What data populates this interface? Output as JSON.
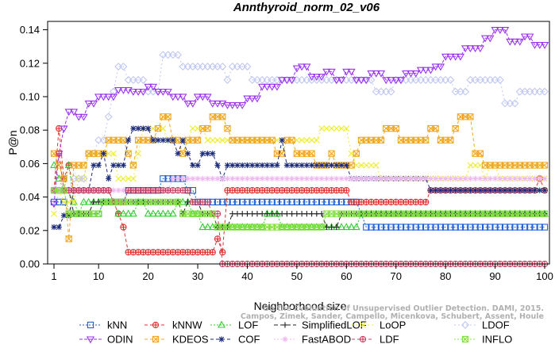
{
  "chart_data": {
    "type": "line",
    "title": "Annthyroid_norm_02_v06",
    "xlabel": "Neighborhood size",
    "ylabel": "P@n",
    "xlim": [
      1,
      100
    ],
    "ylim": [
      0,
      0.145
    ],
    "x_ticks": [
      1,
      10,
      20,
      30,
      40,
      50,
      60,
      70,
      80,
      90,
      100
    ],
    "y_ticks": [
      0.0,
      0.02,
      0.04,
      0.06,
      0.08,
      0.1,
      0.12,
      0.14
    ],
    "y_tick_labels": [
      "0.00",
      "0.02",
      "0.04",
      "0.06",
      "0.08",
      "0.10",
      "0.12",
      "0.14"
    ],
    "grid": false,
    "legend_position": "bottom",
    "watermark": [
      "Campos, Zimek, Sander, Campello, Micenkova, Schubert, Assent, Houle",
      "On the Evaluation of Unsupervised Outlier Detection. DAMI, 2015."
    ],
    "series": [
      {
        "name": "kNN",
        "color": "#1f5fd6",
        "marker": "square",
        "dash": "2,2",
        "points": [
          [
            1,
            0.037
          ],
          [
            3,
            0.037
          ],
          [
            4,
            0.03
          ],
          [
            10,
            0.03
          ],
          [
            11,
            0.037
          ],
          [
            16,
            0.044
          ],
          [
            22,
            0.044
          ],
          [
            23,
            0.051
          ],
          [
            27,
            0.051
          ],
          [
            28,
            0.044
          ],
          [
            30,
            0.037
          ],
          [
            62,
            0.037
          ],
          [
            63,
            0.03
          ],
          [
            64,
            0.022
          ],
          [
            100,
            0.022
          ]
        ]
      },
      {
        "name": "kNNW",
        "color": "#e03030",
        "marker": "circle-plus",
        "dash": "4,3",
        "points": [
          [
            1,
            0.044
          ],
          [
            2,
            0.081
          ],
          [
            3,
            0.051
          ],
          [
            4,
            0.059
          ],
          [
            5,
            0.044
          ],
          [
            12,
            0.044
          ],
          [
            13,
            0.037
          ],
          [
            14,
            0.03
          ],
          [
            15,
            0.022
          ],
          [
            16,
            0.007
          ],
          [
            33,
            0.007
          ],
          [
            34,
            0.015
          ],
          [
            35,
            0.007
          ],
          [
            36,
            0.044
          ],
          [
            60,
            0.044
          ],
          [
            61,
            0.037
          ],
          [
            76,
            0.037
          ],
          [
            77,
            0.044
          ],
          [
            98,
            0.044
          ],
          [
            99,
            0.051
          ],
          [
            100,
            0.044
          ]
        ]
      },
      {
        "name": "LOF",
        "color": "#33cc33",
        "marker": "triangle",
        "dash": "2,2",
        "points": [
          [
            1,
            0.059
          ],
          [
            2,
            0.051
          ],
          [
            3,
            0.044
          ],
          [
            4,
            0.059
          ],
          [
            5,
            0.037
          ],
          [
            6,
            0.03
          ],
          [
            7,
            0.037
          ],
          [
            13,
            0.037
          ],
          [
            14,
            0.03
          ],
          [
            17,
            0.03
          ],
          [
            18,
            0.037
          ],
          [
            20,
            0.03
          ],
          [
            24,
            0.03
          ],
          [
            26,
            0.037
          ],
          [
            29,
            0.03
          ],
          [
            31,
            0.022
          ],
          [
            43,
            0.022
          ],
          [
            44,
            0.03
          ],
          [
            46,
            0.03
          ],
          [
            47,
            0.022
          ],
          [
            62,
            0.022
          ],
          [
            63,
            0.03
          ],
          [
            100,
            0.03
          ]
        ]
      },
      {
        "name": "SimplifiedLOF",
        "color": "#222222",
        "marker": "plus",
        "dash": "5,3",
        "points": [
          [
            1,
            0.044
          ],
          [
            4,
            0.044
          ],
          [
            5,
            0.03
          ],
          [
            8,
            0.03
          ],
          [
            9,
            0.037
          ],
          [
            26,
            0.037
          ],
          [
            27,
            0.03
          ],
          [
            28,
            0.037
          ],
          [
            30,
            0.037
          ],
          [
            31,
            0.03
          ],
          [
            34,
            0.022
          ],
          [
            37,
            0.03
          ],
          [
            55,
            0.03
          ],
          [
            56,
            0.022
          ],
          [
            58,
            0.022
          ],
          [
            59,
            0.03
          ],
          [
            100,
            0.03
          ]
        ]
      },
      {
        "name": "LoOP",
        "color": "#eded30",
        "marker": "x",
        "dash": "2,3",
        "points": [
          [
            1,
            0.03
          ],
          [
            2,
            0.044
          ],
          [
            3,
            0.037
          ],
          [
            6,
            0.051
          ],
          [
            8,
            0.066
          ],
          [
            14,
            0.051
          ],
          [
            18,
            0.066
          ],
          [
            19,
            0.081
          ],
          [
            24,
            0.074
          ],
          [
            29,
            0.081
          ],
          [
            32,
            0.074
          ],
          [
            54,
            0.074
          ],
          [
            55,
            0.081
          ],
          [
            60,
            0.081
          ],
          [
            61,
            0.066
          ],
          [
            62,
            0.059
          ],
          [
            66,
            0.059
          ],
          [
            67,
            0.051
          ],
          [
            83,
            0.051
          ],
          [
            85,
            0.059
          ],
          [
            88,
            0.051
          ],
          [
            89,
            0.059
          ],
          [
            91,
            0.051
          ],
          [
            100,
            0.051
          ]
        ]
      },
      {
        "name": "LDOF",
        "color": "#c0c8f0",
        "marker": "diamond",
        "dash": "2,3",
        "points": [
          [
            1,
            0.044
          ],
          [
            5,
            0.051
          ],
          [
            8,
            0.066
          ],
          [
            10,
            0.074
          ],
          [
            12,
            0.088
          ],
          [
            13,
            0.103
          ],
          [
            14,
            0.118
          ],
          [
            16,
            0.11
          ],
          [
            20,
            0.103
          ],
          [
            23,
            0.125
          ],
          [
            27,
            0.118
          ],
          [
            35,
            0.118
          ],
          [
            36,
            0.11
          ],
          [
            37,
            0.118
          ],
          [
            40,
            0.118
          ],
          [
            41,
            0.11
          ],
          [
            65,
            0.11
          ],
          [
            66,
            0.103
          ],
          [
            70,
            0.11
          ],
          [
            81,
            0.11
          ],
          [
            82,
            0.103
          ],
          [
            85,
            0.11
          ],
          [
            90,
            0.11
          ],
          [
            92,
            0.096
          ],
          [
            94,
            0.096
          ],
          [
            95,
            0.103
          ],
          [
            100,
            0.103
          ]
        ]
      },
      {
        "name": "ODIN",
        "color": "#9933ee",
        "marker": "triangle-down",
        "dash": "4,2",
        "points": [
          [
            1,
            0.036
          ],
          [
            2,
            0.066
          ],
          [
            3,
            0.081
          ],
          [
            4,
            0.091
          ],
          [
            6,
            0.088
          ],
          [
            8,
            0.096
          ],
          [
            10,
            0.1
          ],
          [
            12,
            0.1
          ],
          [
            14,
            0.104
          ],
          [
            17,
            0.103
          ],
          [
            20,
            0.106
          ],
          [
            22,
            0.103
          ],
          [
            25,
            0.1
          ],
          [
            28,
            0.096
          ],
          [
            30,
            0.1
          ],
          [
            33,
            0.096
          ],
          [
            36,
            0.095
          ],
          [
            40,
            0.099
          ],
          [
            43,
            0.106
          ],
          [
            47,
            0.11
          ],
          [
            50,
            0.117
          ],
          [
            51,
            0.118
          ],
          [
            53,
            0.112
          ],
          [
            56,
            0.115
          ],
          [
            58,
            0.11
          ],
          [
            60,
            0.115
          ],
          [
            62,
            0.11
          ],
          [
            65,
            0.114
          ],
          [
            68,
            0.11
          ],
          [
            72,
            0.114
          ],
          [
            75,
            0.116
          ],
          [
            78,
            0.118
          ],
          [
            80,
            0.124
          ],
          [
            84,
            0.129
          ],
          [
            88,
            0.135
          ],
          [
            90,
            0.14
          ],
          [
            92,
            0.14
          ],
          [
            93,
            0.133
          ],
          [
            96,
            0.136
          ],
          [
            98,
            0.131
          ],
          [
            100,
            0.131
          ]
        ]
      },
      {
        "name": "KDEOS",
        "color": "#f0a820",
        "marker": "square-x",
        "dash": "4,3",
        "points": [
          [
            1,
            0.066
          ],
          [
            2,
            0.059
          ],
          [
            3,
            0.051
          ],
          [
            4,
            0.015
          ],
          [
            5,
            0.059
          ],
          [
            8,
            0.066
          ],
          [
            12,
            0.074
          ],
          [
            16,
            0.066
          ],
          [
            17,
            0.059
          ],
          [
            18,
            0.074
          ],
          [
            22,
            0.081
          ],
          [
            23,
            0.088
          ],
          [
            25,
            0.074
          ],
          [
            27,
            0.066
          ],
          [
            28,
            0.074
          ],
          [
            31,
            0.081
          ],
          [
            33,
            0.088
          ],
          [
            36,
            0.081
          ],
          [
            37,
            0.074
          ],
          [
            46,
            0.066
          ],
          [
            48,
            0.074
          ],
          [
            50,
            0.066
          ],
          [
            54,
            0.059
          ],
          [
            57,
            0.066
          ],
          [
            58,
            0.059
          ],
          [
            62,
            0.066
          ],
          [
            63,
            0.074
          ],
          [
            68,
            0.081
          ],
          [
            71,
            0.074
          ],
          [
            77,
            0.081
          ],
          [
            79,
            0.074
          ],
          [
            82,
            0.081
          ],
          [
            83,
            0.088
          ],
          [
            86,
            0.066
          ],
          [
            88,
            0.059
          ],
          [
            100,
            0.059
          ]
        ]
      },
      {
        "name": "COF",
        "color": "#1a2a7a",
        "marker": "star",
        "dash": "4,3",
        "points": [
          [
            1,
            0.022
          ],
          [
            3,
            0.029
          ],
          [
            5,
            0.044
          ],
          [
            9,
            0.059
          ],
          [
            11,
            0.066
          ],
          [
            12,
            0.051
          ],
          [
            13,
            0.059
          ],
          [
            16,
            0.074
          ],
          [
            17,
            0.081
          ],
          [
            21,
            0.074
          ],
          [
            26,
            0.066
          ],
          [
            27,
            0.074
          ],
          [
            28,
            0.066
          ],
          [
            29,
            0.059
          ],
          [
            31,
            0.066
          ],
          [
            34,
            0.059
          ],
          [
            35,
            0.051
          ],
          [
            36,
            0.059
          ],
          [
            40,
            0.059
          ],
          [
            47,
            0.074
          ],
          [
            48,
            0.059
          ],
          [
            60,
            0.059
          ],
          [
            61,
            0.051
          ],
          [
            76,
            0.051
          ],
          [
            77,
            0.044
          ],
          [
            100,
            0.044
          ]
        ]
      },
      {
        "name": "FastABOD",
        "color": "#f0b8f0",
        "marker": "cross",
        "dash": "2,2",
        "points": [
          [
            1,
            0.044
          ],
          [
            20,
            0.044
          ],
          [
            25,
            0.051
          ],
          [
            30,
            0.051
          ],
          [
            34,
            0.051
          ],
          [
            38,
            0.051
          ],
          [
            56,
            0.051
          ],
          [
            60,
            0.051
          ],
          [
            100,
            0.051
          ]
        ]
      },
      {
        "name": "LDF",
        "color": "#c84060",
        "marker": "circle-plus",
        "dash": "4,3",
        "points": [
          [
            1,
            0.044
          ],
          [
            2,
            0.066
          ],
          [
            3,
            0.044
          ],
          [
            12,
            0.044
          ],
          [
            13,
            0.037
          ],
          [
            16,
            0.044
          ],
          [
            28,
            0.044
          ],
          [
            29,
            0.037
          ],
          [
            33,
            0.03
          ],
          [
            35,
            0.0
          ],
          [
            100,
            0.0
          ]
        ]
      },
      {
        "name": "INFLO",
        "color": "#80e040",
        "marker": "square-x",
        "dash": "2,2",
        "points": [
          [
            1,
            0.044
          ],
          [
            3,
            0.044
          ],
          [
            4,
            0.03
          ],
          [
            10,
            0.03
          ],
          [
            11,
            0.037
          ],
          [
            26,
            0.037
          ],
          [
            27,
            0.03
          ],
          [
            33,
            0.03
          ],
          [
            34,
            0.022
          ],
          [
            55,
            0.022
          ],
          [
            56,
            0.03
          ],
          [
            100,
            0.03
          ]
        ]
      }
    ]
  }
}
